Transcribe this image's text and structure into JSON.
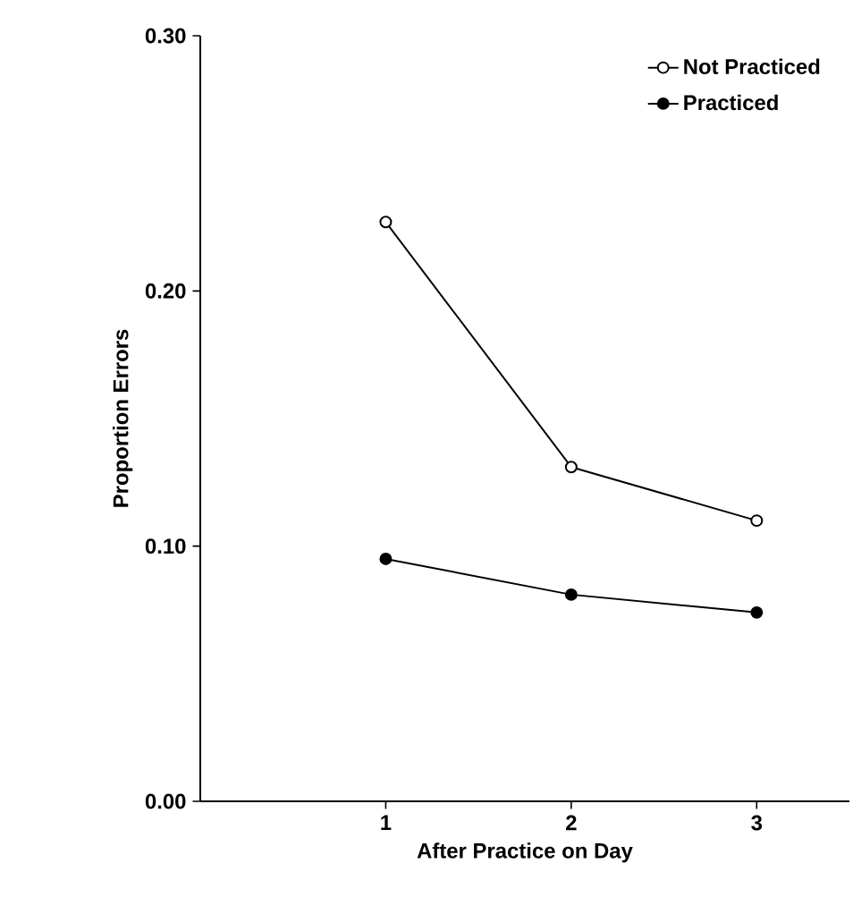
{
  "chart_data": {
    "type": "line",
    "xlabel": "After Practice on Day",
    "ylabel": "Proportion Errors",
    "x": [
      1,
      2,
      3
    ],
    "series": [
      {
        "name": "Not Practiced",
        "color": "#000000",
        "values": [
          0.227,
          0.131,
          0.11
        ]
      },
      {
        "name": "Practiced",
        "color": "#000000",
        "values": [
          0.095,
          0.081,
          0.074
        ]
      }
    ],
    "xlim": [
      0,
      3.5
    ],
    "ylim": [
      0,
      0.3
    ],
    "xticks": [
      1,
      2,
      3
    ],
    "yticks": [
      {
        "value": 0,
        "label": "0.00"
      },
      {
        "value": 0.1,
        "label": "0.10"
      },
      {
        "value": 0.2,
        "label": "0.20"
      },
      {
        "value": 0.3,
        "label": "0.30"
      }
    ],
    "grid": false,
    "legend": "top right",
    "marker": "circle",
    "line_style": "solid"
  }
}
